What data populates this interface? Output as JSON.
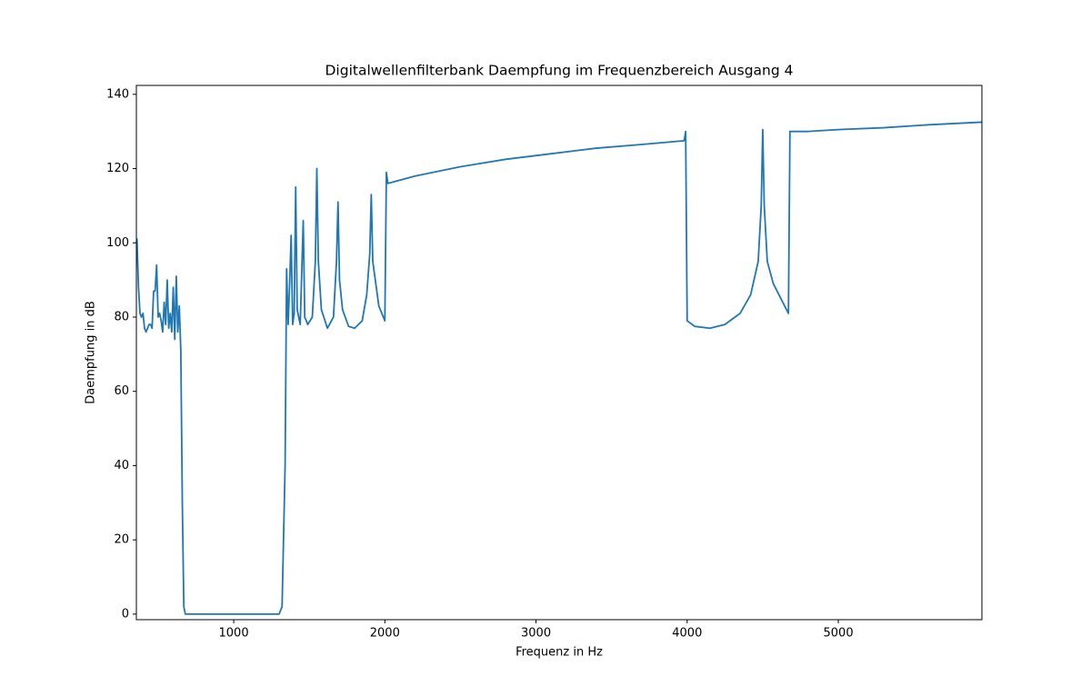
{
  "chart_data": {
    "type": "line",
    "title": "Digitalwellenfilterbank Daempfung im Frequenzbereich Ausgang 4",
    "xlabel": "Frequenz in Hz",
    "ylabel": "Daempfung in dB",
    "color": "#1f77b4",
    "x": [
      356,
      360,
      370,
      380,
      390,
      400,
      410,
      420,
      440,
      450,
      460,
      470,
      480,
      490,
      500,
      510,
      520,
      530,
      540,
      550,
      560,
      570,
      580,
      590,
      600,
      610,
      620,
      630,
      640,
      650,
      660,
      670,
      680,
      1300,
      1320,
      1340,
      1350,
      1360,
      1370,
      1380,
      1390,
      1400,
      1410,
      1420,
      1440,
      1460,
      1470,
      1490,
      1520,
      1540,
      1550,
      1560,
      1580,
      1620,
      1660,
      1680,
      1690,
      1700,
      1720,
      1760,
      1800,
      1850,
      1880,
      1900,
      1910,
      1920,
      1960,
      1990,
      2000,
      2010,
      2020,
      2200,
      2500,
      2800,
      3100,
      3400,
      3700,
      3980,
      3990,
      4000,
      4050,
      4150,
      4250,
      4350,
      4420,
      4470,
      4490,
      4500,
      4510,
      4530,
      4570,
      4620,
      4670,
      4680,
      4800,
      5000,
      5300,
      5600,
      5950
    ],
    "values": [
      96,
      101,
      88,
      81,
      80,
      81,
      77,
      76,
      78,
      78,
      77,
      87,
      87,
      94,
      80,
      81,
      79,
      76,
      84,
      78,
      90,
      77,
      81,
      76,
      88,
      74,
      91,
      76,
      83,
      71,
      30,
      2,
      0,
      0,
      2,
      40,
      93,
      78,
      89,
      102,
      78,
      81,
      115,
      82,
      78,
      106,
      80,
      78,
      80,
      95,
      120,
      95,
      82,
      77,
      80,
      95,
      111,
      90,
      82,
      77.5,
      77,
      79,
      86,
      97,
      113,
      95,
      83,
      80,
      79,
      119,
      116,
      118,
      120.5,
      122.5,
      124,
      125.5,
      126.5,
      127.5,
      130,
      79,
      77.5,
      77,
      78,
      81,
      86,
      95,
      110,
      130.5,
      110,
      95,
      89,
      85,
      81,
      130,
      130,
      130.5,
      131,
      131.8,
      132.5
    ],
    "xlim": [
      356,
      5950
    ],
    "ylim": [
      -1.5,
      142.4
    ],
    "xticks": [
      1000,
      2000,
      3000,
      4000,
      5000
    ],
    "yticks": [
      0,
      20,
      40,
      60,
      80,
      100,
      120,
      140
    ]
  }
}
